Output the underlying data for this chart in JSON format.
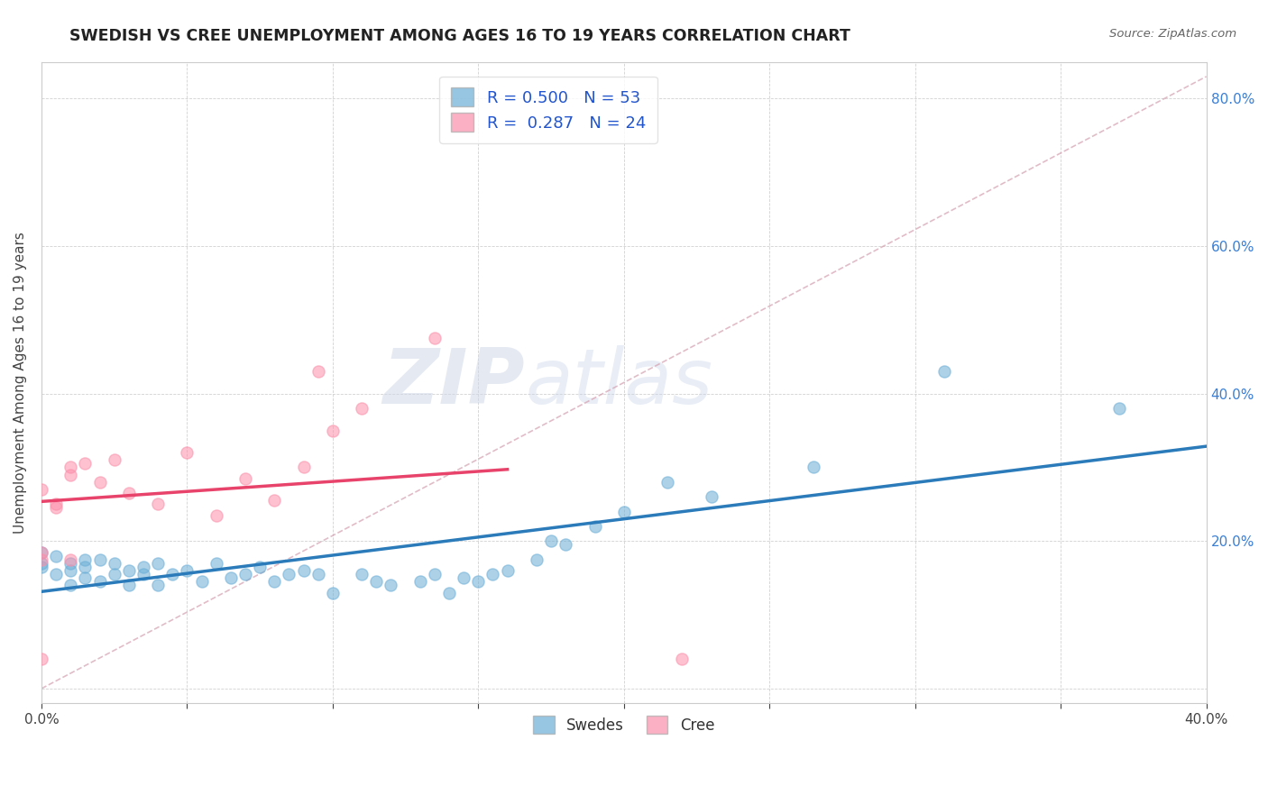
{
  "title": "SWEDISH VS CREE UNEMPLOYMENT AMONG AGES 16 TO 19 YEARS CORRELATION CHART",
  "source": "Source: ZipAtlas.com",
  "ylabel": "Unemployment Among Ages 16 to 19 years",
  "xlim": [
    0.0,
    0.4
  ],
  "ylim": [
    -0.02,
    0.85
  ],
  "watermark": "ZIPatlas",
  "swedish_color": "#6baed6",
  "cree_color": "#fc8faa",
  "swedish_R": 0.5,
  "swedish_N": 53,
  "cree_R": 0.287,
  "cree_N": 24,
  "swedish_scatter_x": [
    0.0,
    0.0,
    0.0,
    0.005,
    0.005,
    0.01,
    0.01,
    0.01,
    0.015,
    0.015,
    0.015,
    0.02,
    0.02,
    0.025,
    0.025,
    0.03,
    0.03,
    0.035,
    0.035,
    0.04,
    0.04,
    0.045,
    0.05,
    0.055,
    0.06,
    0.065,
    0.07,
    0.075,
    0.08,
    0.085,
    0.09,
    0.095,
    0.1,
    0.11,
    0.115,
    0.12,
    0.13,
    0.135,
    0.14,
    0.145,
    0.15,
    0.155,
    0.16,
    0.17,
    0.175,
    0.18,
    0.19,
    0.2,
    0.215,
    0.23,
    0.265,
    0.31,
    0.37
  ],
  "swedish_scatter_y": [
    0.165,
    0.17,
    0.185,
    0.155,
    0.18,
    0.14,
    0.16,
    0.17,
    0.15,
    0.165,
    0.175,
    0.145,
    0.175,
    0.155,
    0.17,
    0.14,
    0.16,
    0.155,
    0.165,
    0.14,
    0.17,
    0.155,
    0.16,
    0.145,
    0.17,
    0.15,
    0.155,
    0.165,
    0.145,
    0.155,
    0.16,
    0.155,
    0.13,
    0.155,
    0.145,
    0.14,
    0.145,
    0.155,
    0.13,
    0.15,
    0.145,
    0.155,
    0.16,
    0.175,
    0.2,
    0.195,
    0.22,
    0.24,
    0.28,
    0.26,
    0.3,
    0.43,
    0.38
  ],
  "cree_scatter_x": [
    0.0,
    0.0,
    0.0,
    0.0,
    0.005,
    0.005,
    0.01,
    0.01,
    0.01,
    0.015,
    0.02,
    0.025,
    0.03,
    0.04,
    0.05,
    0.06,
    0.07,
    0.08,
    0.09,
    0.095,
    0.1,
    0.11,
    0.135,
    0.22
  ],
  "cree_scatter_y": [
    0.175,
    0.185,
    0.27,
    0.04,
    0.245,
    0.25,
    0.175,
    0.29,
    0.3,
    0.305,
    0.28,
    0.31,
    0.265,
    0.25,
    0.32,
    0.235,
    0.285,
    0.255,
    0.3,
    0.43,
    0.35,
    0.38,
    0.475,
    0.04
  ],
  "cree_line_x_start": 0.0,
  "cree_line_x_end": 0.16,
  "ref_line_x": [
    0.0,
    0.4
  ],
  "ref_line_y": [
    0.0,
    0.83
  ]
}
